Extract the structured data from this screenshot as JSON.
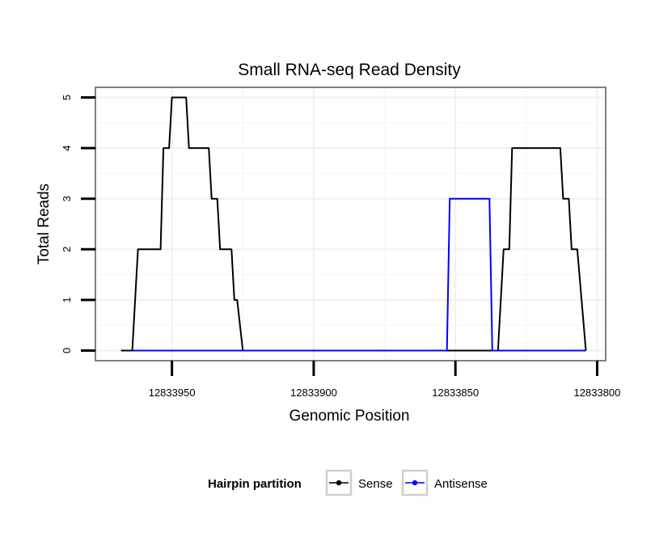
{
  "chart_data": {
    "type": "line",
    "title": "Small RNA-seq Read Density",
    "xlabel": "Genomic Position",
    "ylabel": "Total Reads",
    "x_reversed": true,
    "xlim": [
      12833977,
      12833797
    ],
    "ylim": [
      -0.2,
      5.2
    ],
    "x_ticks": [
      {
        "value": 12833950,
        "label": "12833950"
      },
      {
        "value": 12833900,
        "label": "12833900"
      },
      {
        "value": 12833850,
        "label": "12833850"
      },
      {
        "value": 12833800,
        "label": "12833800"
      }
    ],
    "y_ticks": [
      {
        "value": 0,
        "label": "0"
      },
      {
        "value": 1,
        "label": "1"
      },
      {
        "value": 2,
        "label": "2"
      },
      {
        "value": 3,
        "label": "3"
      },
      {
        "value": 4,
        "label": "4"
      },
      {
        "value": 5,
        "label": "5"
      }
    ],
    "grid": true,
    "legend": {
      "title": "Hairpin partition",
      "position": "bottom",
      "entries": [
        "Sense",
        "Antisense"
      ]
    },
    "series": [
      {
        "name": "Sense",
        "color": "#000000",
        "points": [
          [
            12833968,
            0
          ],
          [
            12833964,
            0
          ],
          [
            12833962,
            2
          ],
          [
            12833954,
            2
          ],
          [
            12833953,
            4
          ],
          [
            12833951,
            4
          ],
          [
            12833950,
            5
          ],
          [
            12833945,
            5
          ],
          [
            12833944,
            4
          ],
          [
            12833937,
            4
          ],
          [
            12833936,
            3
          ],
          [
            12833934,
            3
          ],
          [
            12833933,
            2
          ],
          [
            12833929,
            2
          ],
          [
            12833928,
            1
          ],
          [
            12833927,
            1
          ],
          [
            12833925,
            0
          ],
          [
            12833835,
            0
          ],
          [
            12833833,
            2
          ],
          [
            12833831,
            2
          ],
          [
            12833830,
            4
          ],
          [
            12833813,
            4
          ],
          [
            12833812,
            3
          ],
          [
            12833810,
            3
          ],
          [
            12833809,
            2
          ],
          [
            12833807,
            2
          ],
          [
            12833804,
            0
          ]
        ]
      },
      {
        "name": "Antisense",
        "color": "#0000ff",
        "points": [
          [
            12833964,
            0
          ],
          [
            12833853,
            0
          ],
          [
            12833852,
            3
          ],
          [
            12833838,
            3
          ],
          [
            12833837,
            0
          ],
          [
            12833804,
            0
          ]
        ]
      }
    ]
  }
}
